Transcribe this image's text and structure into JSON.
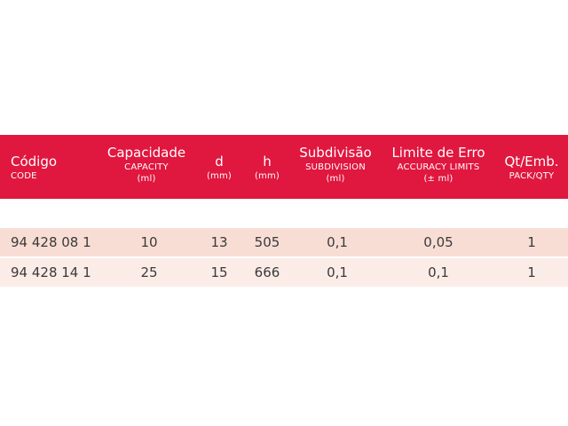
{
  "table": {
    "headers": [
      {
        "main": "Código",
        "sub": [
          "CODE"
        ]
      },
      {
        "main": "Capacidade",
        "sub": [
          "CAPACITY",
          "(ml)"
        ]
      },
      {
        "main": "d",
        "sub": [
          "(mm)"
        ]
      },
      {
        "main": "h",
        "sub": [
          "(mm)"
        ]
      },
      {
        "main": "Subdivisão",
        "sub": [
          "SUBDIVISION",
          "(ml)"
        ]
      },
      {
        "main": "Limite de Erro",
        "sub": [
          "ACCURACY LIMITS",
          "(± ml)"
        ]
      },
      {
        "main": "Qt/Emb.",
        "sub": [
          "PACK/QTY"
        ]
      }
    ],
    "rows": [
      [
        "94 428 08 1",
        "10",
        "13",
        "505",
        "0,1",
        "0,05",
        "1"
      ],
      [
        "94 428 14 1",
        "25",
        "15",
        "666",
        "0,1",
        "0,1",
        "1"
      ]
    ]
  },
  "colors": {
    "header_bg": "#e0173f",
    "header_text": "#ffffff",
    "row1_bg": "#f8ddd5",
    "row2_bg": "#fcece7"
  }
}
